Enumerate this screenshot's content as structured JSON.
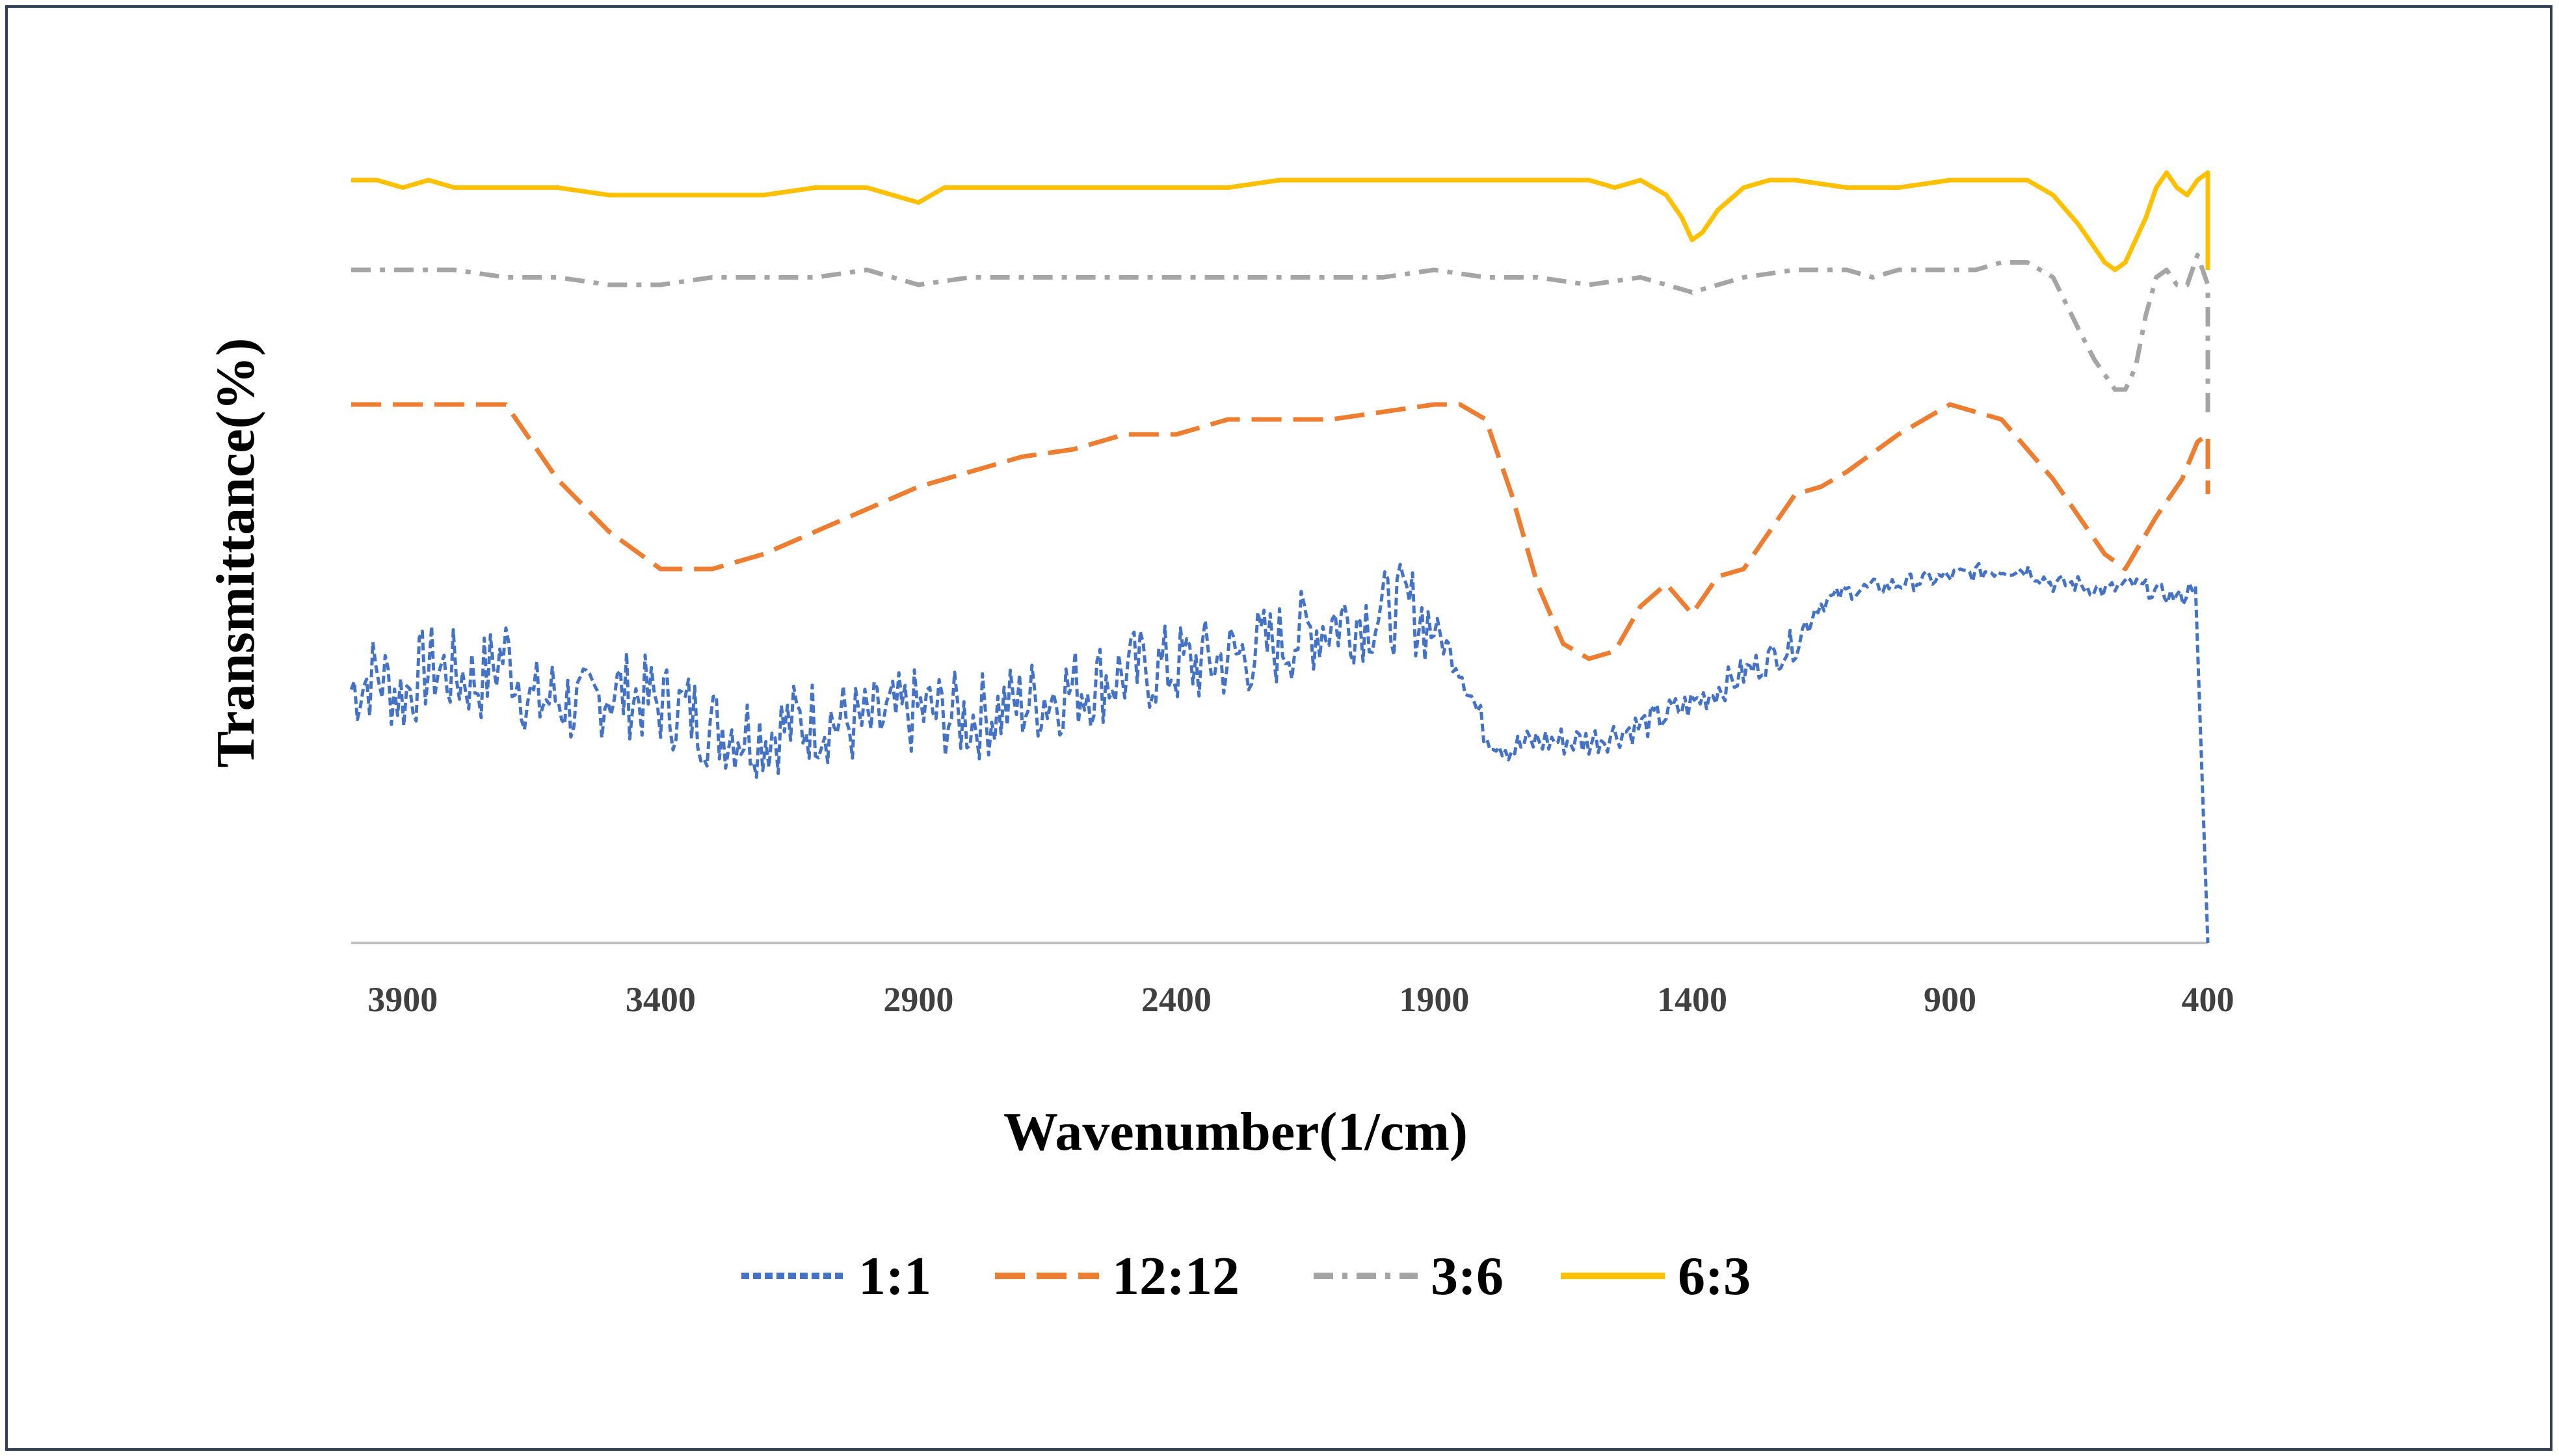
{
  "chart_data": {
    "type": "line",
    "title": "",
    "xlabel": "Wavenumber(1/cm)",
    "ylabel": "Transmittance(%)",
    "xlim": [
      4000,
      400
    ],
    "x_reversed": true,
    "ylim": [
      0,
      100
    ],
    "yticks_shown": false,
    "xticks": [
      3900,
      3400,
      2900,
      2400,
      1900,
      1400,
      900,
      400
    ],
    "grid": false,
    "legend_position": "bottom",
    "series": [
      {
        "name": "1:1",
        "color": "#4472c4",
        "dash": "dotted",
        "noisy": true,
        "points": [
          [
            4000,
            34
          ],
          [
            3950,
            36
          ],
          [
            3900,
            33
          ],
          [
            3850,
            37
          ],
          [
            3800,
            36
          ],
          [
            3750,
            35
          ],
          [
            3700,
            39
          ],
          [
            3650,
            32
          ],
          [
            3600,
            33
          ],
          [
            3550,
            31
          ],
          [
            3500,
            34
          ],
          [
            3450,
            33
          ],
          [
            3400,
            32
          ],
          [
            3350,
            31
          ],
          [
            3300,
            29
          ],
          [
            3200,
            28
          ],
          [
            3100,
            30
          ],
          [
            3000,
            29
          ],
          [
            2900,
            31
          ],
          [
            2800,
            30
          ],
          [
            2700,
            32
          ],
          [
            2600,
            34
          ],
          [
            2500,
            36
          ],
          [
            2400,
            37
          ],
          [
            2300,
            38
          ],
          [
            2200,
            40
          ],
          [
            2100,
            43
          ],
          [
            2000,
            44
          ],
          [
            1950,
            45
          ],
          [
            1900,
            42
          ],
          [
            1850,
            37
          ],
          [
            1800,
            28
          ],
          [
            1750,
            26
          ],
          [
            1700,
            27
          ],
          [
            1600,
            27
          ],
          [
            1500,
            29
          ],
          [
            1400,
            32
          ],
          [
            1300,
            36
          ],
          [
            1200,
            40
          ],
          [
            1160,
            45
          ],
          [
            1100,
            47
          ],
          [
            1000,
            48
          ],
          [
            900,
            49
          ],
          [
            800,
            50
          ],
          [
            750,
            50
          ],
          [
            700,
            48
          ],
          [
            650,
            48
          ],
          [
            600,
            47
          ],
          [
            550,
            48
          ],
          [
            500,
            47
          ],
          [
            450,
            46
          ],
          [
            420,
            49
          ],
          [
            400,
            0
          ]
        ]
      },
      {
        "name": "12:12",
        "color": "#ed7d31",
        "dash": "long-dash",
        "noisy": false,
        "points": [
          [
            4000,
            72
          ],
          [
            3950,
            72
          ],
          [
            3800,
            72
          ],
          [
            3700,
            72
          ],
          [
            3600,
            62
          ],
          [
            3500,
            55
          ],
          [
            3400,
            50
          ],
          [
            3350,
            50
          ],
          [
            3300,
            50
          ],
          [
            3200,
            52
          ],
          [
            3100,
            55
          ],
          [
            3000,
            58
          ],
          [
            2900,
            61
          ],
          [
            2800,
            63
          ],
          [
            2700,
            65
          ],
          [
            2600,
            66
          ],
          [
            2500,
            68
          ],
          [
            2400,
            68
          ],
          [
            2300,
            70
          ],
          [
            2200,
            70
          ],
          [
            2100,
            70
          ],
          [
            2000,
            71
          ],
          [
            1900,
            72
          ],
          [
            1850,
            72
          ],
          [
            1800,
            70
          ],
          [
            1750,
            60
          ],
          [
            1700,
            48
          ],
          [
            1650,
            40
          ],
          [
            1600,
            38
          ],
          [
            1550,
            39
          ],
          [
            1500,
            45
          ],
          [
            1450,
            48
          ],
          [
            1400,
            44
          ],
          [
            1350,
            49
          ],
          [
            1300,
            50
          ],
          [
            1250,
            55
          ],
          [
            1200,
            60
          ],
          [
            1150,
            61
          ],
          [
            1100,
            63
          ],
          [
            1000,
            68
          ],
          [
            950,
            70
          ],
          [
            900,
            72
          ],
          [
            850,
            71
          ],
          [
            800,
            70
          ],
          [
            700,
            62
          ],
          [
            600,
            52
          ],
          [
            560,
            50
          ],
          [
            500,
            57
          ],
          [
            450,
            62
          ],
          [
            420,
            67
          ],
          [
            400,
            68
          ],
          [
            400,
            60
          ]
        ]
      },
      {
        "name": "3:6",
        "color": "#a5a5a5",
        "dash": "dash-dot",
        "noisy": false,
        "points": [
          [
            4000,
            90
          ],
          [
            3950,
            90
          ],
          [
            3900,
            90
          ],
          [
            3800,
            90
          ],
          [
            3700,
            89
          ],
          [
            3600,
            89
          ],
          [
            3500,
            88
          ],
          [
            3400,
            88
          ],
          [
            3300,
            89
          ],
          [
            3200,
            89
          ],
          [
            3100,
            89
          ],
          [
            3000,
            90
          ],
          [
            2900,
            88
          ],
          [
            2800,
            89
          ],
          [
            2700,
            89
          ],
          [
            2600,
            89
          ],
          [
            2500,
            89
          ],
          [
            2400,
            89
          ],
          [
            2300,
            89
          ],
          [
            2200,
            89
          ],
          [
            2100,
            89
          ],
          [
            2000,
            89
          ],
          [
            1900,
            90
          ],
          [
            1800,
            89
          ],
          [
            1700,
            89
          ],
          [
            1600,
            88
          ],
          [
            1500,
            89
          ],
          [
            1450,
            88
          ],
          [
            1400,
            87
          ],
          [
            1350,
            88
          ],
          [
            1300,
            89
          ],
          [
            1200,
            90
          ],
          [
            1100,
            90
          ],
          [
            1050,
            89
          ],
          [
            1000,
            90
          ],
          [
            900,
            90
          ],
          [
            850,
            90
          ],
          [
            800,
            91
          ],
          [
            750,
            91
          ],
          [
            700,
            89
          ],
          [
            650,
            82
          ],
          [
            620,
            78
          ],
          [
            600,
            76
          ],
          [
            580,
            74
          ],
          [
            560,
            74
          ],
          [
            540,
            77
          ],
          [
            520,
            84
          ],
          [
            500,
            89
          ],
          [
            480,
            90
          ],
          [
            460,
            88
          ],
          [
            440,
            88
          ],
          [
            420,
            92
          ],
          [
            400,
            88
          ],
          [
            400,
            70
          ]
        ]
      },
      {
        "name": "6:3",
        "color": "#ffc000",
        "dash": "solid",
        "noisy": false,
        "points": [
          [
            4000,
            102
          ],
          [
            3950,
            102
          ],
          [
            3900,
            101
          ],
          [
            3850,
            102
          ],
          [
            3800,
            101
          ],
          [
            3750,
            101
          ],
          [
            3700,
            101
          ],
          [
            3600,
            101
          ],
          [
            3500,
            100
          ],
          [
            3400,
            100
          ],
          [
            3300,
            100
          ],
          [
            3200,
            100
          ],
          [
            3100,
            101
          ],
          [
            3000,
            101
          ],
          [
            2950,
            100
          ],
          [
            2900,
            99
          ],
          [
            2850,
            101
          ],
          [
            2800,
            101
          ],
          [
            2700,
            101
          ],
          [
            2600,
            101
          ],
          [
            2500,
            101
          ],
          [
            2400,
            101
          ],
          [
            2300,
            101
          ],
          [
            2200,
            102
          ],
          [
            2100,
            102
          ],
          [
            2000,
            102
          ],
          [
            1900,
            102
          ],
          [
            1800,
            102
          ],
          [
            1700,
            102
          ],
          [
            1600,
            102
          ],
          [
            1550,
            101
          ],
          [
            1500,
            102
          ],
          [
            1450,
            100
          ],
          [
            1420,
            97
          ],
          [
            1400,
            94
          ],
          [
            1380,
            95
          ],
          [
            1350,
            98
          ],
          [
            1300,
            101
          ],
          [
            1250,
            102
          ],
          [
            1200,
            102
          ],
          [
            1100,
            101
          ],
          [
            1000,
            101
          ],
          [
            900,
            102
          ],
          [
            850,
            102
          ],
          [
            800,
            102
          ],
          [
            750,
            102
          ],
          [
            700,
            100
          ],
          [
            650,
            96
          ],
          [
            600,
            91
          ],
          [
            580,
            90
          ],
          [
            560,
            91
          ],
          [
            520,
            97
          ],
          [
            500,
            101
          ],
          [
            480,
            103
          ],
          [
            460,
            101
          ],
          [
            440,
            100
          ],
          [
            420,
            102
          ],
          [
            400,
            103
          ],
          [
            400,
            90
          ]
        ]
      }
    ]
  }
}
